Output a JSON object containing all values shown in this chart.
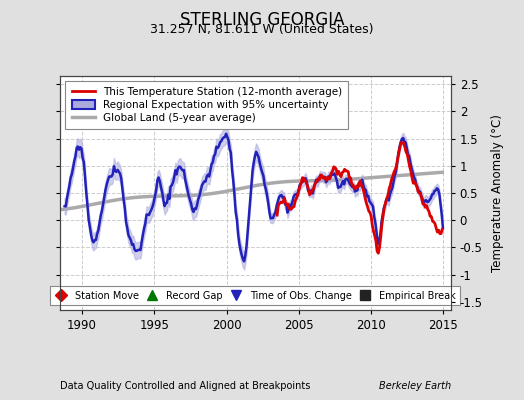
{
  "title": "STERLING GEORGIA",
  "subtitle": "31.257 N, 81.611 W (United States)",
  "ylabel": "Temperature Anomaly (°C)",
  "xlabel_left": "Data Quality Controlled and Aligned at Breakpoints",
  "xlabel_right": "Berkeley Earth",
  "xlim": [
    1988.5,
    2015.5
  ],
  "ylim": [
    -1.65,
    2.65
  ],
  "yticks": [
    -1.5,
    -1.0,
    -0.5,
    0.0,
    0.5,
    1.0,
    1.5,
    2.0,
    2.5
  ],
  "xticks": [
    1990,
    1995,
    2000,
    2005,
    2010,
    2015
  ],
  "bg_color": "#e0e0e0",
  "plot_bg_color": "#ffffff",
  "grid_color": "#cccccc",
  "red_color": "#dd0000",
  "blue_color": "#2222bb",
  "blue_fill": "#aaaadd",
  "gray_color": "#aaaaaa",
  "legend_labels": [
    "This Temperature Station (12-month average)",
    "Regional Expectation with 95% uncertainty",
    "Global Land (5-year average)"
  ],
  "marker_legend": [
    {
      "label": "Station Move",
      "marker": "D",
      "color": "#dd0000"
    },
    {
      "label": "Record Gap",
      "marker": "^",
      "color": "#007700"
    },
    {
      "label": "Time of Obs. Change",
      "marker": "v",
      "color": "#2222bb"
    },
    {
      "label": "Empirical Break",
      "marker": "s",
      "color": "#222222"
    }
  ]
}
